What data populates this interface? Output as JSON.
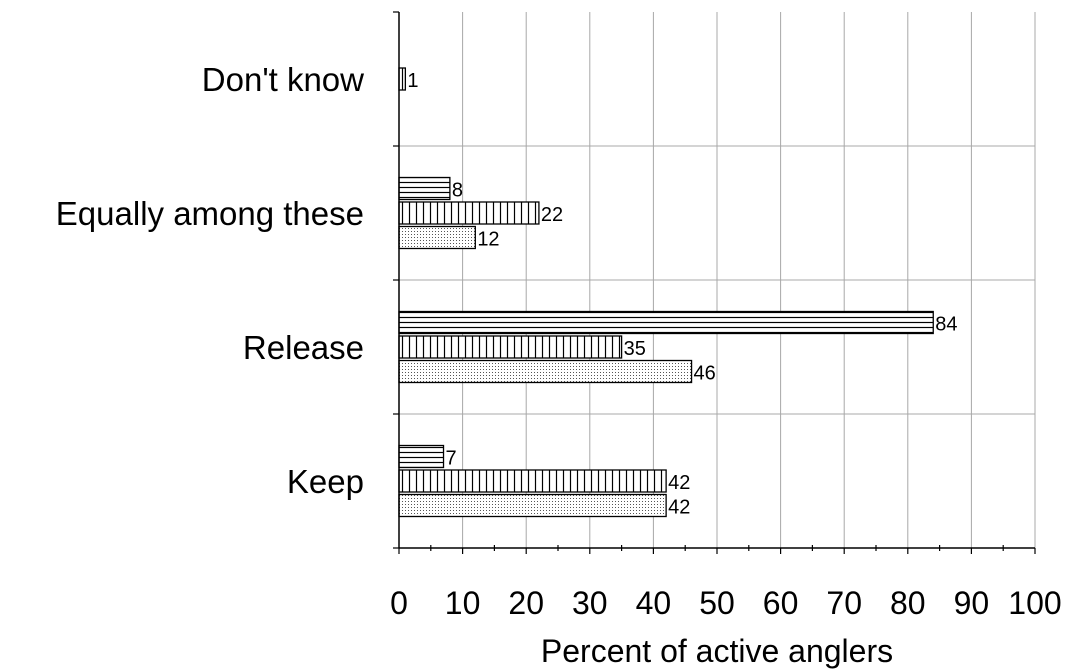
{
  "chart_data": {
    "type": "bar",
    "orientation": "horizontal",
    "categories": [
      "Don't know",
      "Equally among these",
      "Release",
      "Keep"
    ],
    "series": [
      {
        "values": [
          null,
          8,
          84,
          7
        ],
        "pattern": "horizontal-stripes"
      },
      {
        "values": [
          1,
          22,
          35,
          42
        ],
        "pattern": "vertical-stripes"
      },
      {
        "values": [
          null,
          12,
          46,
          42
        ],
        "pattern": "dots"
      }
    ],
    "xlabel": "Percent of active anglers",
    "xlim": [
      0,
      100
    ],
    "xticks": [
      0,
      10,
      20,
      30,
      40,
      50,
      60,
      70,
      80,
      90,
      100
    ],
    "grid": true
  }
}
